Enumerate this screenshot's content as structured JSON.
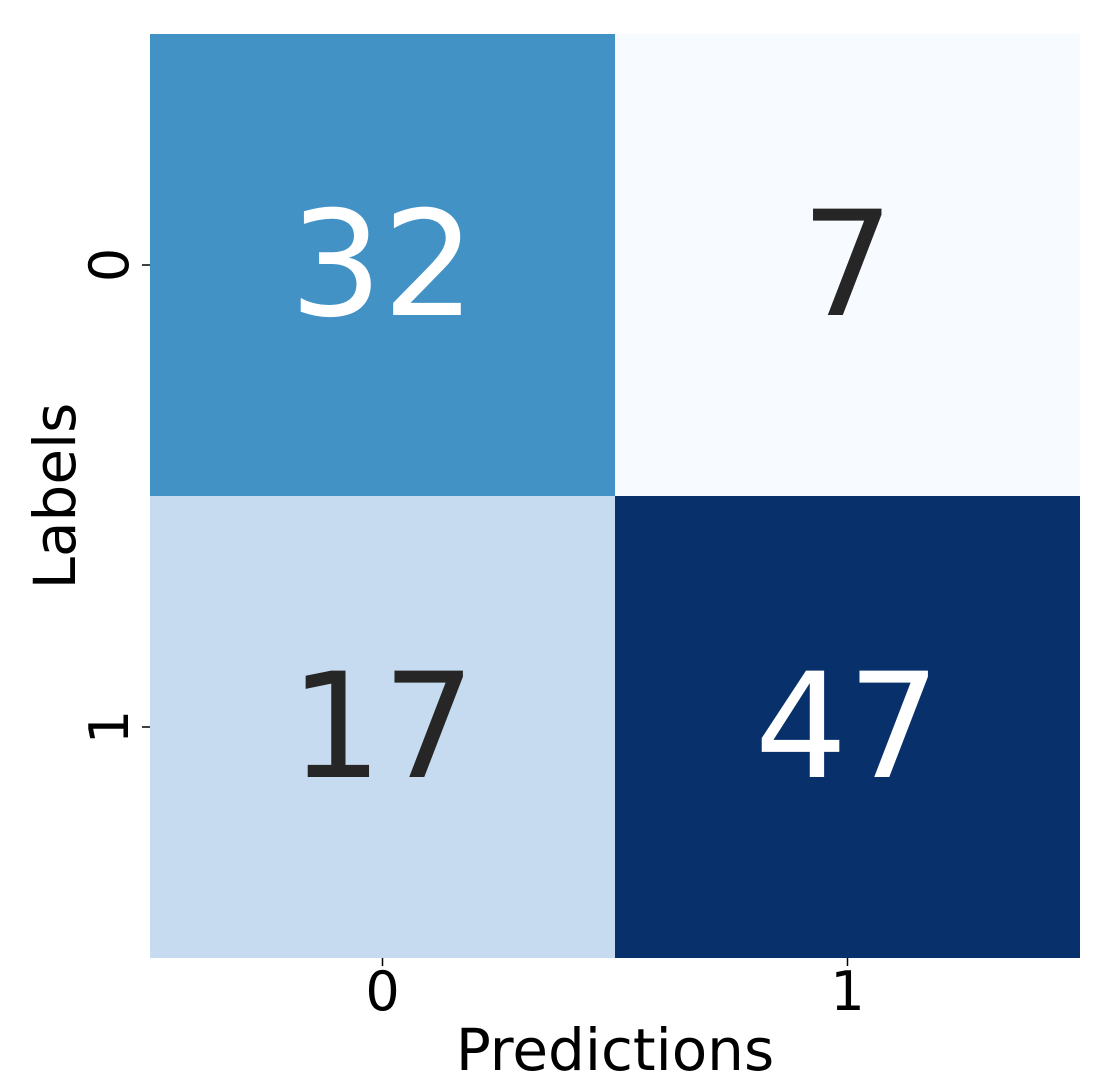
{
  "chart_data": {
    "type": "heatmap",
    "title": "",
    "xlabel": "Predictions",
    "ylabel": "Labels",
    "x_categories": [
      "0",
      "1"
    ],
    "y_categories": [
      "0",
      "1"
    ],
    "values": [
      [
        32,
        7
      ],
      [
        17,
        47
      ]
    ],
    "colormap": "Blues",
    "color_range": [
      7,
      47
    ],
    "colorbar": false,
    "grid": false,
    "annotations": true
  }
}
